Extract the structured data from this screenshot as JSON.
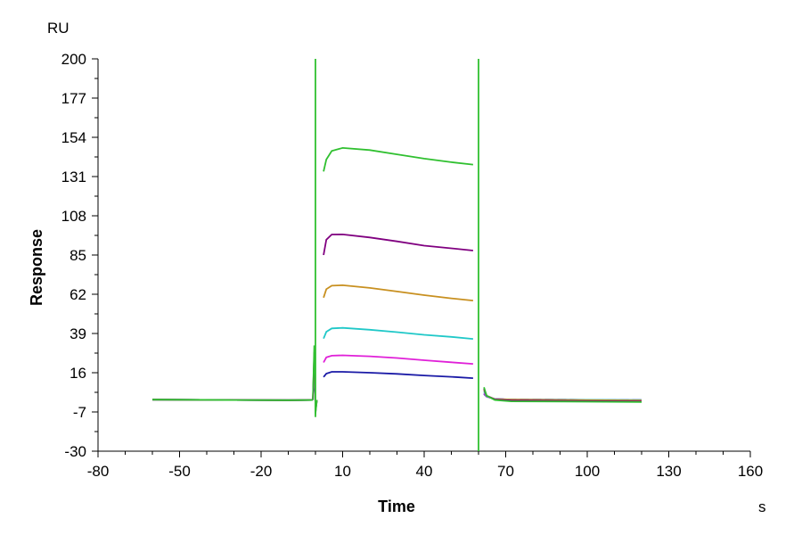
{
  "chart_data": {
    "type": "line",
    "xlabel": "Time",
    "ylabel": "Response",
    "x_unit": "s",
    "y_unit": "RU",
    "xlim": [
      -80,
      160
    ],
    "ylim": [
      -30,
      200
    ],
    "xticks": [
      -80,
      -50,
      -20,
      10,
      40,
      70,
      100,
      130,
      160
    ],
    "yticks": [
      -30,
      -7,
      16,
      39,
      62,
      85,
      108,
      131,
      154,
      177,
      200
    ],
    "grid": false,
    "legend": "none",
    "injection_start": 0,
    "injection_end": 60,
    "series": [
      {
        "color": "#1a1aa6",
        "baseline": 0,
        "assoc": [
          [
            3,
            13.5
          ],
          [
            4,
            15.5
          ],
          [
            6,
            16.5
          ],
          [
            10,
            16.5
          ],
          [
            20,
            16.0
          ],
          [
            30,
            15.3
          ],
          [
            40,
            14.4
          ],
          [
            50,
            13.6
          ],
          [
            58,
            12.8
          ]
        ],
        "dissoc": [
          [
            62,
            3.5
          ],
          [
            63,
            2.0
          ],
          [
            66,
            0.6
          ],
          [
            72,
            0.3
          ],
          [
            100,
            0.1
          ],
          [
            120,
            0.0
          ]
        ]
      },
      {
        "color": "#e020d8",
        "baseline": 0,
        "assoc": [
          [
            3,
            22.0
          ],
          [
            4,
            25.0
          ],
          [
            6,
            26.0
          ],
          [
            10,
            26.2
          ],
          [
            20,
            25.6
          ],
          [
            30,
            24.6
          ],
          [
            40,
            23.3
          ],
          [
            50,
            22.1
          ],
          [
            58,
            21.2
          ]
        ],
        "dissoc": [
          [
            62,
            4.0
          ],
          [
            63,
            2.0
          ],
          [
            66,
            0.6
          ],
          [
            72,
            0.3
          ],
          [
            100,
            0.1
          ],
          [
            120,
            0.0
          ]
        ]
      },
      {
        "color": "#20c8c8",
        "baseline": 0,
        "assoc": [
          [
            3,
            36.0
          ],
          [
            4,
            40.0
          ],
          [
            6,
            42.0
          ],
          [
            10,
            42.3
          ],
          [
            20,
            41.2
          ],
          [
            30,
            39.8
          ],
          [
            40,
            38.2
          ],
          [
            50,
            37.0
          ],
          [
            58,
            35.8
          ]
        ],
        "dissoc": [
          [
            62,
            5.0
          ],
          [
            63,
            2.2
          ],
          [
            66,
            0.6
          ],
          [
            72,
            0.3
          ],
          [
            100,
            0.1
          ],
          [
            120,
            0.0
          ]
        ]
      },
      {
        "color": "#c89020",
        "baseline": 0,
        "assoc": [
          [
            3,
            60.0
          ],
          [
            4,
            65.0
          ],
          [
            6,
            67.0
          ],
          [
            10,
            67.3
          ],
          [
            20,
            65.7
          ],
          [
            30,
            63.6
          ],
          [
            40,
            61.5
          ],
          [
            50,
            59.6
          ],
          [
            58,
            58.3
          ]
        ],
        "dissoc": [
          [
            62,
            6.0
          ],
          [
            63,
            2.5
          ],
          [
            66,
            0.5
          ],
          [
            72,
            0.2
          ],
          [
            100,
            -0.1
          ],
          [
            120,
            -0.3
          ]
        ]
      },
      {
        "color": "#800080",
        "baseline": 0,
        "assoc": [
          [
            3,
            85.0
          ],
          [
            4,
            94.0
          ],
          [
            6,
            97.0
          ],
          [
            10,
            97.1
          ],
          [
            20,
            95.3
          ],
          [
            30,
            93.0
          ],
          [
            40,
            90.5
          ],
          [
            50,
            88.9
          ],
          [
            58,
            87.6
          ]
        ],
        "dissoc": [
          [
            62,
            6.5
          ],
          [
            63,
            2.5
          ],
          [
            66,
            0.3
          ],
          [
            72,
            -0.3
          ],
          [
            100,
            -0.6
          ],
          [
            120,
            -0.8
          ]
        ]
      },
      {
        "color": "#30c030",
        "baseline": 0,
        "assoc": [
          [
            3,
            134.0
          ],
          [
            4,
            141.0
          ],
          [
            6,
            146.0
          ],
          [
            10,
            147.8
          ],
          [
            20,
            146.5
          ],
          [
            30,
            144.0
          ],
          [
            40,
            141.5
          ],
          [
            50,
            139.4
          ],
          [
            58,
            138.0
          ]
        ],
        "dissoc": [
          [
            62,
            7.5
          ],
          [
            63,
            2.5
          ],
          [
            66,
            0.0
          ],
          [
            72,
            -0.8
          ],
          [
            100,
            -1.0
          ],
          [
            120,
            -1.2
          ]
        ]
      }
    ]
  }
}
